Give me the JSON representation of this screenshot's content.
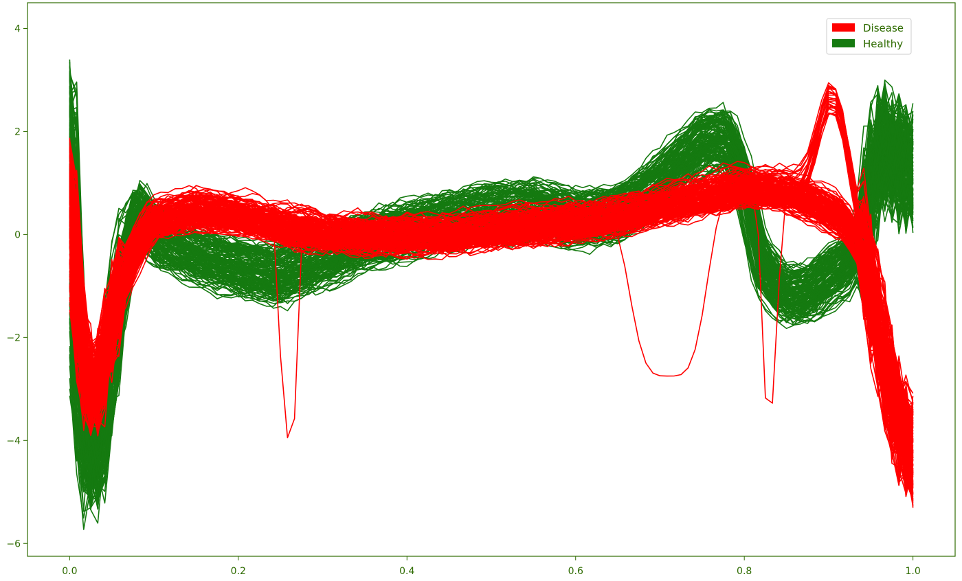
{
  "chart_data": {
    "type": "line",
    "title": "",
    "xlabel": "",
    "ylabel": "",
    "xlim": [
      -0.05,
      1.05
    ],
    "ylim": [
      -6.25,
      4.5
    ],
    "x_ticks": [
      0.0,
      0.2,
      0.4,
      0.6,
      0.8,
      1.0
    ],
    "x_tick_labels": [
      "0.0",
      "0.2",
      "0.4",
      "0.6",
      "0.8",
      "1.0"
    ],
    "y_ticks": [
      4,
      2,
      0,
      -2,
      -4,
      -6
    ],
    "y_tick_labels": [
      "4",
      "2",
      "0",
      "−2",
      "−4",
      "−6"
    ],
    "grid": false,
    "legend_position": "top-right",
    "axis_color": "#2e6b00",
    "series": [
      {
        "name": "Healthy",
        "color": "#157a10",
        "count_drawn": 150,
        "representative": {
          "x": [
            0.0,
            0.01,
            0.02,
            0.03,
            0.04,
            0.06,
            0.08,
            0.1,
            0.15,
            0.2,
            0.25,
            0.3,
            0.35,
            0.4,
            0.45,
            0.5,
            0.55,
            0.6,
            0.65,
            0.7,
            0.75,
            0.78,
            0.8,
            0.82,
            0.85,
            0.88,
            0.9,
            0.92,
            0.94,
            0.96,
            0.98,
            1.0
          ],
          "y": [
            2.5,
            -2.5,
            -4.2,
            -4.6,
            -3.5,
            -1.0,
            0.5,
            0.0,
            -0.4,
            -0.6,
            -0.8,
            -0.5,
            -0.1,
            0.1,
            0.3,
            0.4,
            0.5,
            0.3,
            0.4,
            1.0,
            1.8,
            1.9,
            1.0,
            -0.6,
            -1.2,
            -1.1,
            -0.8,
            -0.6,
            0.0,
            1.8,
            1.5,
            1.2
          ]
        }
      },
      {
        "name": "Disease",
        "color": "#ff0000",
        "count_drawn": 170,
        "representative": {
          "x": [
            0.0,
            0.01,
            0.02,
            0.03,
            0.04,
            0.06,
            0.08,
            0.1,
            0.15,
            0.2,
            0.25,
            0.3,
            0.35,
            0.4,
            0.45,
            0.5,
            0.55,
            0.6,
            0.65,
            0.7,
            0.75,
            0.8,
            0.85,
            0.88,
            0.9,
            0.92,
            0.94,
            0.96,
            0.98,
            1.0
          ],
          "y": [
            1.2,
            -1.5,
            -2.8,
            -3.1,
            -2.4,
            -1.0,
            -0.2,
            0.3,
            0.5,
            0.4,
            0.2,
            0.05,
            0.0,
            0.0,
            0.0,
            0.1,
            0.2,
            0.25,
            0.35,
            0.55,
            0.75,
            0.95,
            0.85,
            0.65,
            0.5,
            0.3,
            -0.2,
            -1.8,
            -3.5,
            -4.2
          ]
        },
        "outlier_dips": [
          {
            "x": 0.26,
            "y": -3.95
          },
          {
            "x": 0.71,
            "y": -2.75
          },
          {
            "x": 0.83,
            "y": -3.3
          }
        ],
        "peak_region": {
          "x": [
            0.88,
            0.93
          ],
          "y_max": 3.05
        }
      }
    ],
    "legend": [
      {
        "label": "Disease",
        "color": "#ff0000"
      },
      {
        "label": "Healthy",
        "color": "#157a10"
      }
    ]
  }
}
